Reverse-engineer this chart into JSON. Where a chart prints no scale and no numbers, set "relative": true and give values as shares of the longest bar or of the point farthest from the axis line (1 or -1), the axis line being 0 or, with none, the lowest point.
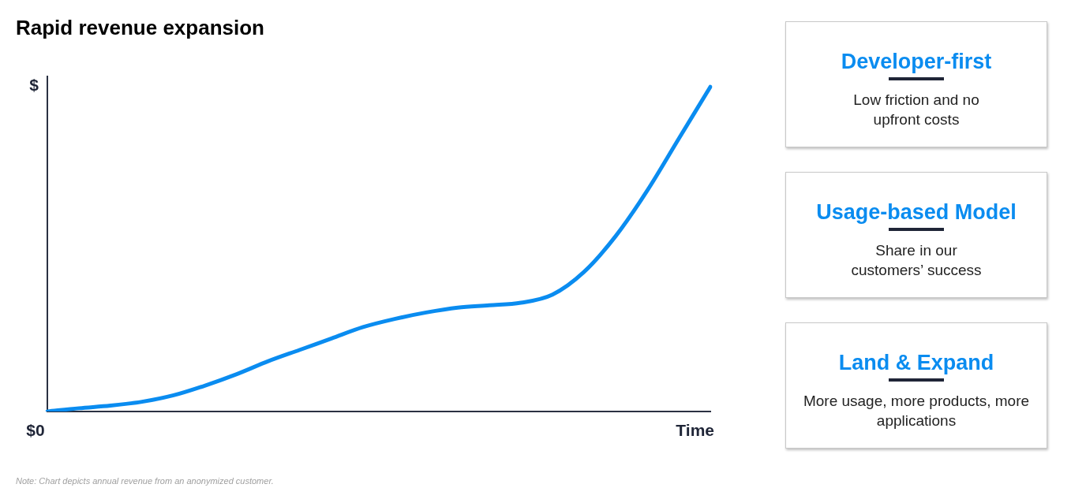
{
  "chart_data": [
    {
      "type": "line",
      "title": "Rapid revenue expansion",
      "ylabel": "$",
      "xlabel": "Time",
      "relative": true,
      "categories": [
        null,
        null,
        null,
        null,
        null,
        null,
        null,
        null,
        null,
        null,
        null,
        null,
        null,
        null,
        null,
        null,
        null,
        null,
        null,
        null,
        null,
        null
      ],
      "series": [
        {
          "color": "#0a8cf0",
          "values": [
            0,
            0.01,
            0.018,
            0.03,
            0.05,
            0.08,
            0.115,
            0.155,
            0.19,
            0.225,
            0.26,
            0.285,
            0.305,
            0.32,
            0.327,
            0.335,
            0.36,
            0.43,
            0.54,
            0.68,
            0.84,
            1
          ]
        }
      ],
      "marker": "none",
      "line_style": "solid",
      "grid": false,
      "legend": false,
      "annotations": [
        "$0",
        "Note: Chart depicts annual revenue from an anonymized customer."
      ]
    },
    {
      "type": "other",
      "annotations": [
        "Developer-first",
        "Low friction and no upfront costs",
        "Usage-based Model",
        "Share in our customers’ success",
        "Land & Expand",
        "More usage, more products, more applications"
      ]
    }
  ]
}
